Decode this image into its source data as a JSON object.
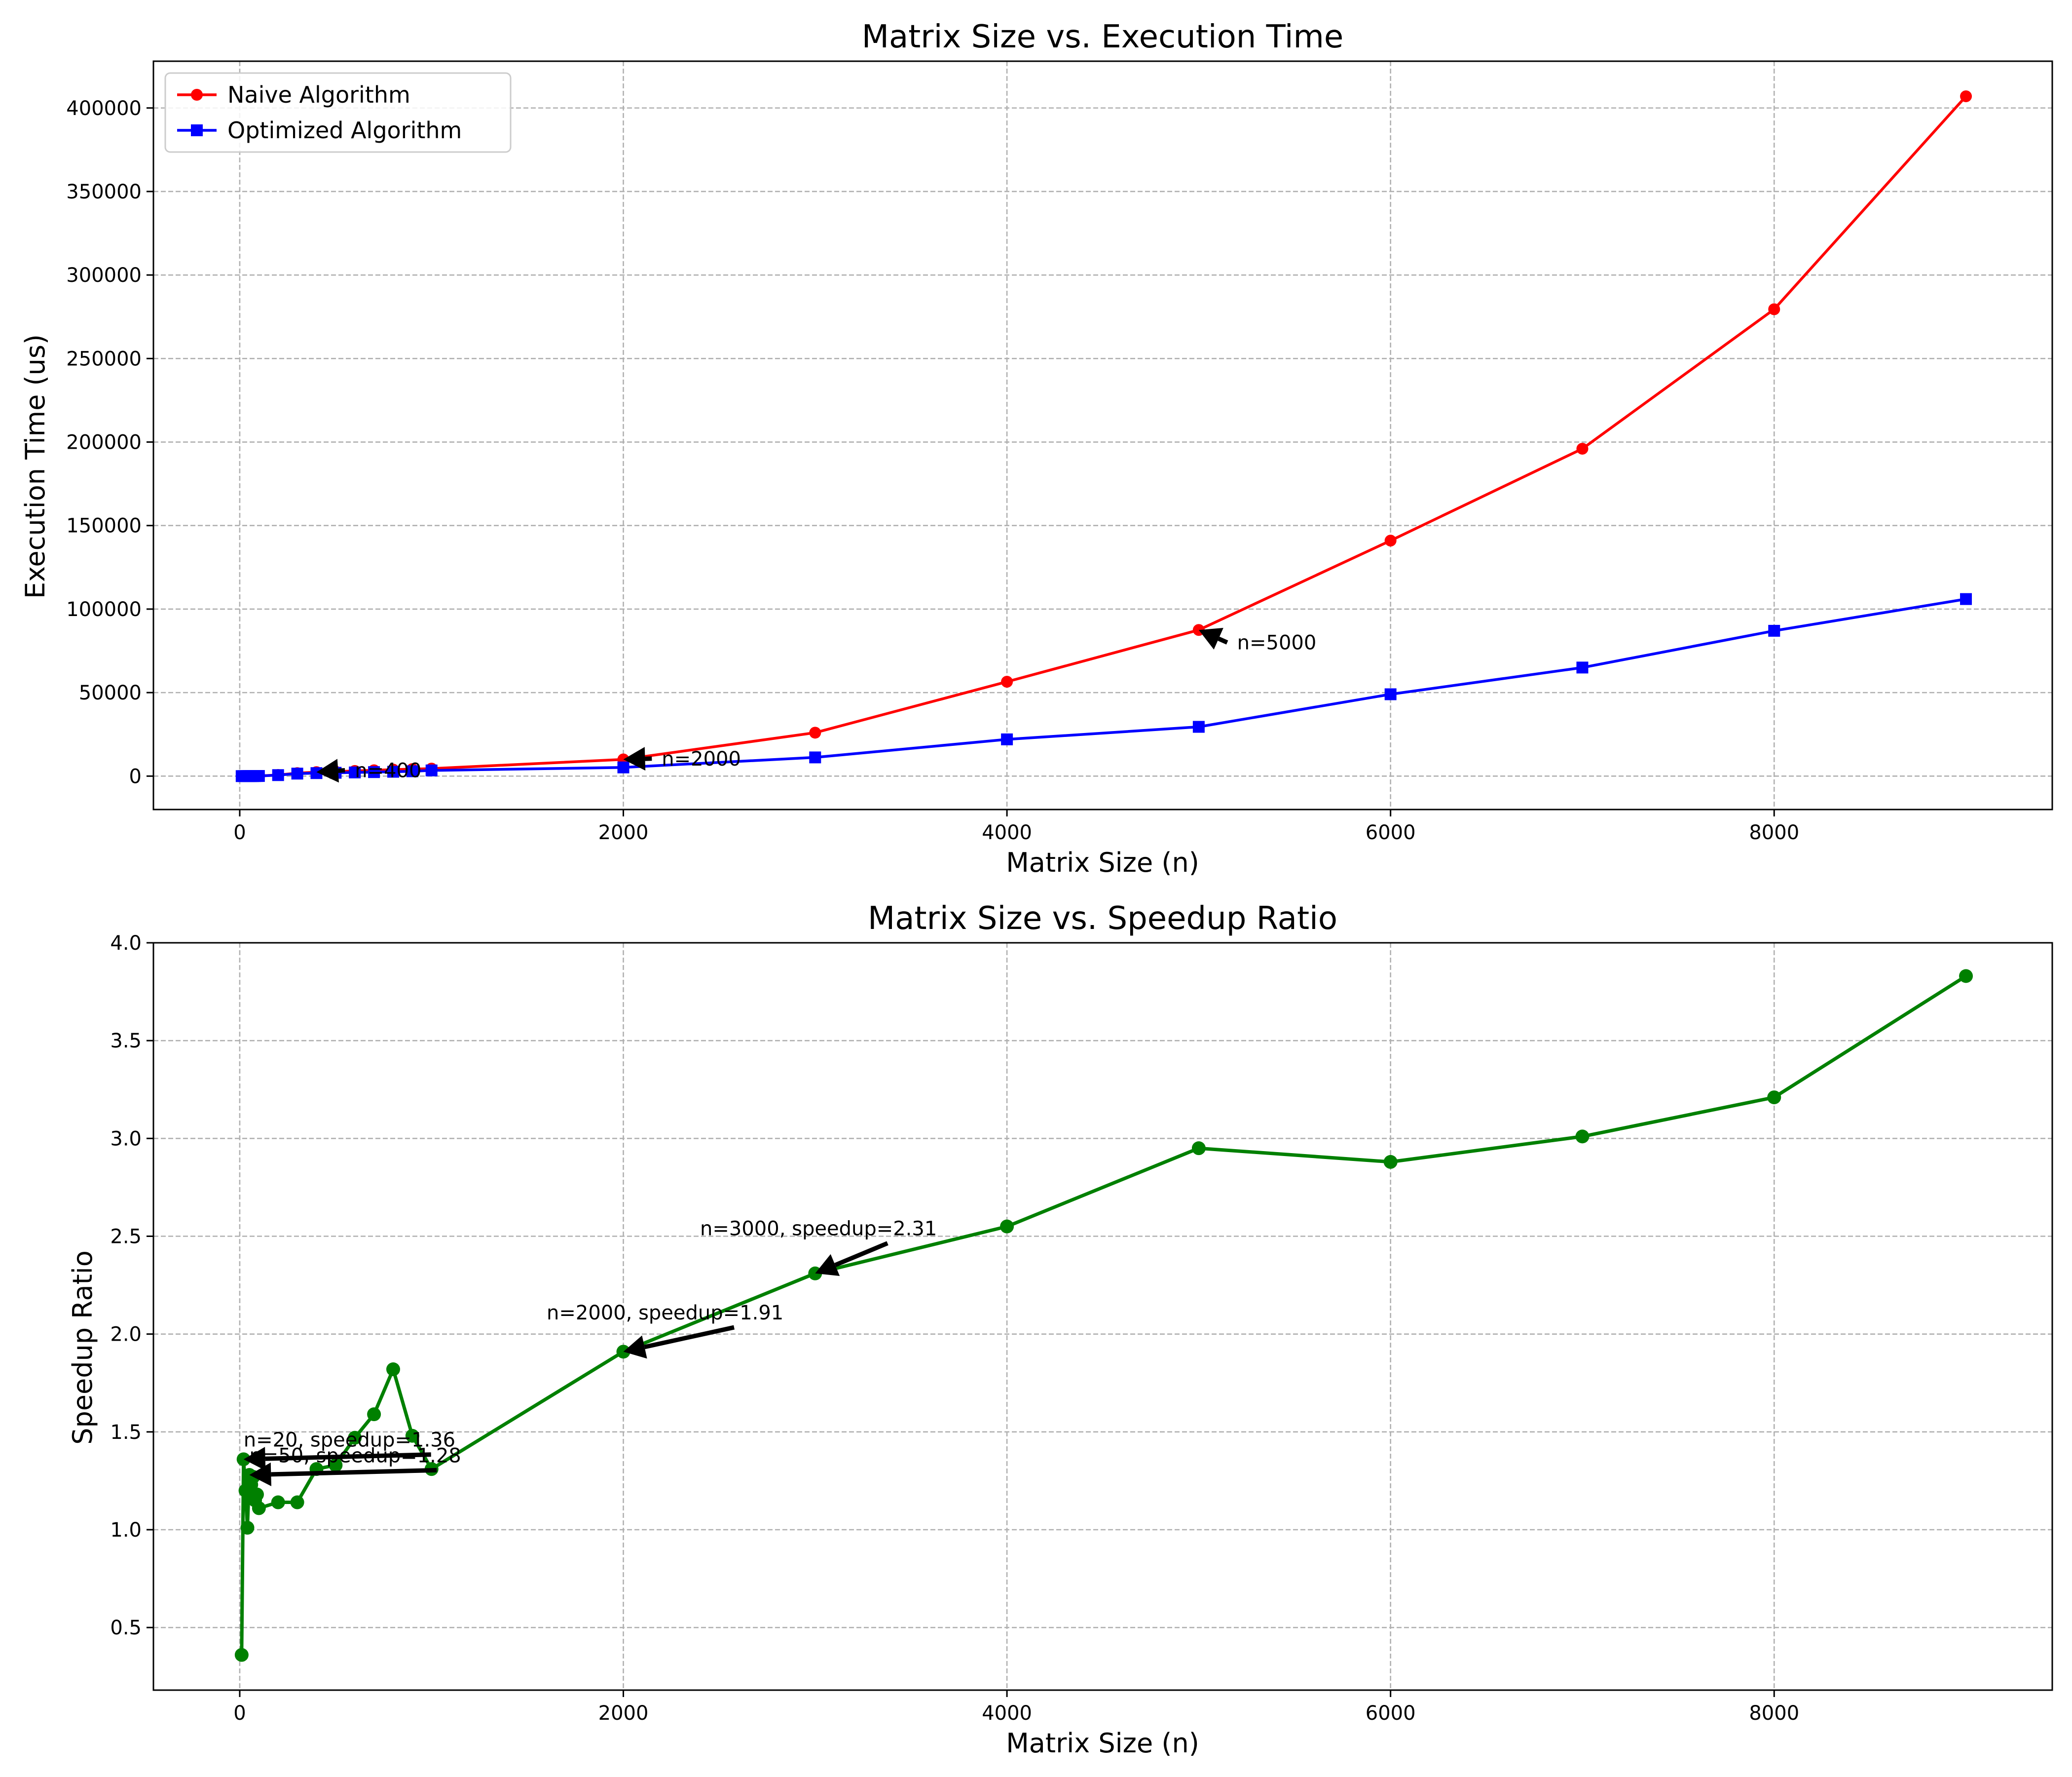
{
  "chart_data": [
    {
      "type": "line",
      "title": "Matrix Size vs. Execution Time",
      "xlabel": "Matrix Size (n)",
      "ylabel": "Execution Time (us)",
      "xlim": [
        -450,
        9450
      ],
      "ylim": [
        -20000,
        428000
      ],
      "xticks": [
        0,
        2000,
        4000,
        6000,
        8000
      ],
      "yticks": [
        0,
        50000,
        100000,
        150000,
        200000,
        250000,
        300000,
        350000,
        400000
      ],
      "grid": true,
      "legend_position": "top-left",
      "series": [
        {
          "name": "Naive Algorithm",
          "color": "#ff0000",
          "marker": "circle",
          "x": [
            10,
            20,
            30,
            40,
            50,
            60,
            70,
            80,
            90,
            100,
            200,
            300,
            400,
            500,
            600,
            700,
            800,
            900,
            1000,
            2000,
            3000,
            4000,
            5000,
            6000,
            7000,
            8000,
            9000
          ],
          "y": [
            1,
            3,
            6,
            10,
            16,
            25,
            37,
            52,
            70,
            92,
            700,
            1800,
            2400,
            2700,
            3100,
            3500,
            3900,
            4200,
            4500,
            10000,
            26000,
            56500,
            87500,
            141000,
            196000,
            279500,
            407000
          ]
        },
        {
          "name": "Optimized Algorithm",
          "color": "#0000ff",
          "marker": "square",
          "x": [
            10,
            20,
            30,
            40,
            50,
            60,
            70,
            80,
            90,
            100,
            200,
            300,
            400,
            500,
            600,
            700,
            800,
            900,
            1000,
            2000,
            3000,
            4000,
            5000,
            6000,
            7000,
            8000,
            9000
          ],
          "y": [
            3,
            2,
            5,
            10,
            12,
            20,
            30,
            45,
            60,
            80,
            600,
            1500,
            1800,
            2000,
            2200,
            2400,
            2600,
            2900,
            3400,
            5200,
            11200,
            22000,
            29500,
            49000,
            65000,
            87000,
            106000
          ]
        }
      ],
      "annotations": [
        {
          "text": "n=400",
          "x": 400,
          "y": 2400,
          "tx": 600,
          "ty": 3500
        },
        {
          "text": "n=2000",
          "x": 2000,
          "y": 10000,
          "tx": 2200,
          "ty": 10500
        },
        {
          "text": "n=5000",
          "x": 5000,
          "y": 87500,
          "tx": 5200,
          "ty": 80000
        }
      ]
    },
    {
      "type": "line",
      "title": "Matrix Size vs. Speedup Ratio",
      "xlabel": "Matrix Size (n)",
      "ylabel": "Speedup Ratio",
      "xlim": [
        -450,
        9450
      ],
      "ylim": [
        0.18,
        4.0
      ],
      "xticks": [
        0,
        2000,
        4000,
        6000,
        8000
      ],
      "yticks": [
        0.5,
        1.0,
        1.5,
        2.0,
        2.5,
        3.0,
        3.5,
        4.0
      ],
      "grid": true,
      "series": [
        {
          "color": "#008000",
          "marker": "circle",
          "x": [
            10,
            20,
            30,
            40,
            50,
            60,
            70,
            80,
            90,
            100,
            200,
            300,
            400,
            500,
            600,
            700,
            800,
            900,
            1000,
            2000,
            3000,
            4000,
            5000,
            6000,
            7000,
            8000,
            9000
          ],
          "y": [
            0.36,
            1.36,
            1.2,
            1.01,
            1.28,
            1.23,
            1.27,
            1.15,
            1.18,
            1.11,
            1.14,
            1.14,
            1.31,
            1.33,
            1.47,
            1.59,
            1.82,
            1.48,
            1.31,
            1.91,
            2.31,
            2.55,
            2.95,
            2.88,
            3.01,
            3.21,
            3.83
          ]
        }
      ],
      "annotations": [
        {
          "text": "n=20, speedup=1.36",
          "x": 20,
          "y": 1.36,
          "tx": 20,
          "ty": 1.46
        },
        {
          "text": "n=50, speedup=1.28",
          "x": 50,
          "y": 1.28,
          "tx": 50,
          "ty": 1.38
        },
        {
          "text": "n=2000, speedup=1.91",
          "x": 2000,
          "y": 1.91,
          "tx": 1600,
          "ty": 2.11
        },
        {
          "text": "n=3000, speedup=2.31",
          "x": 3000,
          "y": 2.31,
          "tx": 2400,
          "ty": 2.54
        }
      ]
    }
  ]
}
